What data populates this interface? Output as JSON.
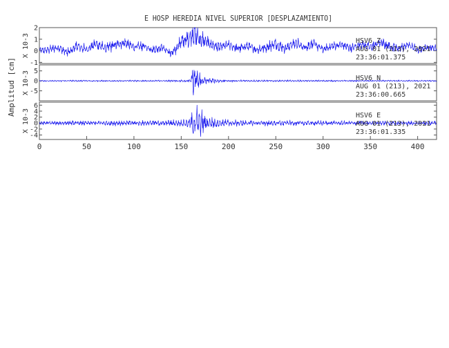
{
  "chart_data": {
    "type": "line",
    "title": "E HOSP HEREDIA NIVEL SUPERIOR [DESPLAZAMIENTO]",
    "ylabel": "Amplitud [cm]",
    "x_ticks": [
      0,
      50,
      100,
      150,
      200,
      250,
      300,
      350,
      400
    ],
    "xlim": [
      0,
      420
    ],
    "line_color": "#1a1aee",
    "grid": false,
    "series": [
      {
        "name": "HSV6 Z",
        "channel_label": "HSV6   Z",
        "date_label": "AUG 01 (213), 2021",
        "time_label": "23:36:01.375",
        "scale_label": "X 10-3",
        "y_ticks": [
          2,
          1,
          0,
          -1
        ],
        "ylim": [
          -1.1,
          2.0
        ],
        "x": [
          0,
          10,
          20,
          30,
          40,
          50,
          60,
          70,
          80,
          90,
          100,
          110,
          120,
          130,
          140,
          150,
          155,
          160,
          163,
          166,
          170,
          175,
          180,
          190,
          200,
          210,
          220,
          230,
          240,
          250,
          260,
          270,
          280,
          290,
          300,
          310,
          320,
          330,
          340,
          350,
          360,
          370,
          380,
          390,
          400,
          410,
          420
        ],
        "values": [
          0.0,
          0.1,
          0.3,
          -0.2,
          0.4,
          0.1,
          0.6,
          0.2,
          0.5,
          0.7,
          0.3,
          0.4,
          0.1,
          0.3,
          -0.3,
          0.8,
          0.9,
          1.2,
          1.6,
          1.3,
          1.0,
          0.8,
          0.6,
          0.3,
          0.5,
          0.2,
          0.4,
          0.1,
          0.3,
          0.6,
          0.2,
          0.7,
          0.3,
          0.6,
          0.1,
          0.4,
          0.5,
          0.2,
          0.6,
          0.3,
          0.7,
          0.4,
          0.2,
          0.5,
          0.1,
          0.3,
          0.2
        ],
        "amplitude": [
          0.25,
          0.3,
          0.35,
          0.4,
          0.4,
          0.35,
          0.4,
          0.45,
          0.4,
          0.4,
          0.35,
          0.35,
          0.3,
          0.35,
          0.4,
          0.5,
          0.7,
          0.9,
          1.1,
          1.0,
          0.8,
          0.6,
          0.5,
          0.4,
          0.35,
          0.35,
          0.35,
          0.35,
          0.4,
          0.45,
          0.4,
          0.45,
          0.4,
          0.4,
          0.35,
          0.35,
          0.35,
          0.35,
          0.4,
          0.35,
          0.4,
          0.4,
          0.35,
          0.35,
          0.3,
          0.3,
          0.3
        ]
      },
      {
        "name": "HSV6 N",
        "channel_label": "HSV6   N",
        "date_label": "AUG 01 (213), 2021",
        "time_label": "23:36:00.665",
        "scale_label": "X 10-3",
        "y_ticks": [
          5,
          0,
          -5
        ],
        "ylim": [
          -10,
          8
        ],
        "x": [
          0,
          20,
          40,
          60,
          80,
          100,
          120,
          140,
          155,
          160,
          163,
          166,
          170,
          175,
          180,
          190,
          200,
          220,
          240,
          260,
          280,
          300,
          320,
          340,
          360,
          380,
          400,
          420
        ],
        "values": [
          0,
          0,
          0,
          0,
          0,
          0,
          0,
          0,
          0,
          0,
          0,
          0,
          0,
          0,
          0,
          0,
          0,
          0,
          0,
          0,
          0,
          0,
          0,
          0,
          0,
          0,
          0,
          0
        ],
        "amplitude": [
          0.3,
          0.3,
          0.35,
          0.3,
          0.3,
          0.3,
          0.3,
          0.35,
          0.5,
          1.5,
          8.0,
          6.0,
          3.5,
          2.2,
          1.3,
          0.8,
          0.5,
          0.4,
          0.35,
          0.35,
          0.35,
          0.3,
          0.3,
          0.3,
          0.3,
          0.3,
          0.3,
          0.3
        ]
      },
      {
        "name": "HSV6 E",
        "channel_label": "HSV6   E",
        "date_label": "AUG 01 (213), 2021",
        "time_label": "23:36:01.335",
        "scale_label": "X 10-3",
        "y_ticks": [
          6,
          4,
          2,
          0,
          -2,
          -4
        ],
        "ylim": [
          -5.5,
          7.0
        ],
        "x": [
          0,
          20,
          40,
          60,
          80,
          100,
          120,
          140,
          150,
          155,
          160,
          163,
          166,
          170,
          175,
          180,
          190,
          200,
          220,
          240,
          260,
          280,
          300,
          320,
          340,
          360,
          380,
          400,
          420
        ],
        "values": [
          0,
          0,
          0,
          0,
          0,
          0,
          0,
          0,
          0,
          0,
          0,
          0,
          0,
          0,
          0,
          0,
          0,
          0,
          0,
          0,
          0,
          0,
          0,
          0,
          0,
          0,
          0,
          0,
          0
        ],
        "amplitude": [
          0.5,
          0.6,
          0.6,
          0.7,
          0.8,
          0.7,
          0.8,
          0.9,
          1.0,
          1.3,
          2.0,
          4.5,
          5.5,
          4.0,
          2.5,
          1.8,
          1.2,
          1.0,
          0.8,
          0.8,
          0.8,
          0.7,
          0.7,
          0.7,
          0.6,
          0.6,
          0.6,
          0.6,
          0.6
        ]
      }
    ]
  }
}
